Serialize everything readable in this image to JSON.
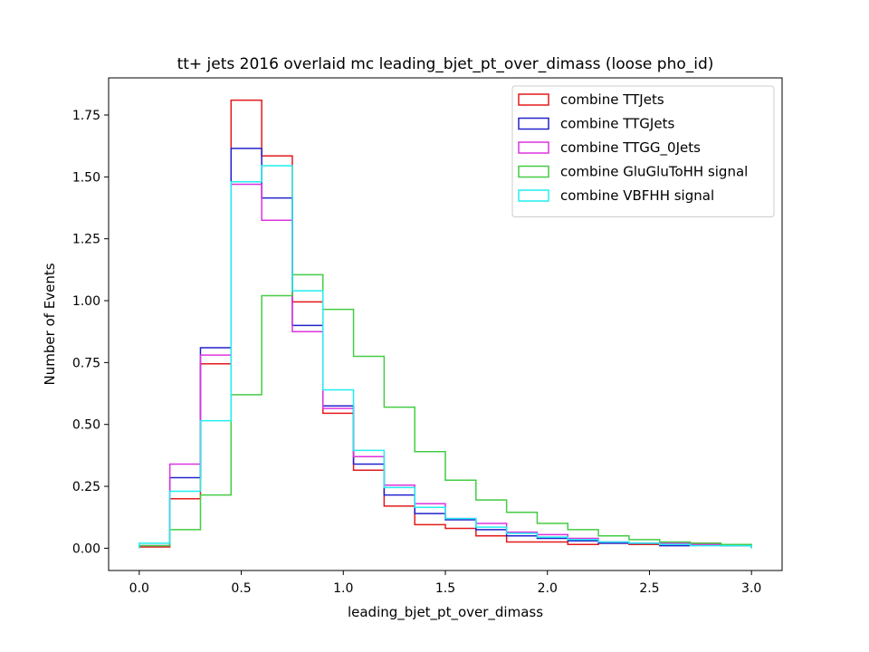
{
  "chart_data": {
    "type": "histogram-step",
    "title": "tt+ jets 2016 overlaid mc leading_bjet_pt_over_dimass (loose pho_id)",
    "xlabel": "leading_bjet_pt_over_dimass",
    "ylabel": "Number of Events",
    "xlim": [
      -0.15,
      3.15
    ],
    "ylim": [
      -0.09,
      1.9
    ],
    "bin_edges": [
      0.0,
      0.15,
      0.3,
      0.45,
      0.6,
      0.75,
      0.9,
      1.05,
      1.2,
      1.35,
      1.5,
      1.65,
      1.8,
      1.95,
      2.1,
      2.25,
      2.4,
      2.55,
      2.7,
      2.85,
      3.0
    ],
    "x_ticks": [
      {
        "value": 0.0,
        "label": "0.0"
      },
      {
        "value": 0.5,
        "label": "0.5"
      },
      {
        "value": 1.0,
        "label": "1.0"
      },
      {
        "value": 1.5,
        "label": "1.5"
      },
      {
        "value": 2.0,
        "label": "2.0"
      },
      {
        "value": 2.5,
        "label": "2.5"
      },
      {
        "value": 3.0,
        "label": "3.0"
      }
    ],
    "y_ticks": [
      {
        "value": 0.0,
        "label": "0.00"
      },
      {
        "value": 0.25,
        "label": "0.25"
      },
      {
        "value": 0.5,
        "label": "0.50"
      },
      {
        "value": 0.75,
        "label": "0.75"
      },
      {
        "value": 1.0,
        "label": "1.00"
      },
      {
        "value": 1.25,
        "label": "1.25"
      },
      {
        "value": 1.5,
        "label": "1.50"
      },
      {
        "value": 1.75,
        "label": "1.75"
      }
    ],
    "grid": false,
    "legend_position": "top-right",
    "series": [
      {
        "name": "combine TTJets",
        "color": "#e41a1c",
        "values": [
          0.005,
          0.2,
          0.745,
          1.81,
          1.585,
          0.995,
          0.545,
          0.315,
          0.17,
          0.095,
          0.08,
          0.05,
          0.025,
          0.025,
          0.015,
          0.02,
          0.015,
          0.015,
          0.02,
          0.01
        ]
      },
      {
        "name": "combine TTGJets",
        "color": "#2222cc",
        "values": [
          0.01,
          0.285,
          0.81,
          1.615,
          1.415,
          0.9,
          0.575,
          0.34,
          0.215,
          0.14,
          0.115,
          0.075,
          0.05,
          0.04,
          0.03,
          0.02,
          0.02,
          0.01,
          0.015,
          0.01
        ]
      },
      {
        "name": "combine TTGG_0Jets",
        "color": "#dd33dd",
        "values": [
          0.01,
          0.34,
          0.78,
          1.47,
          1.325,
          0.875,
          0.565,
          0.37,
          0.255,
          0.18,
          0.12,
          0.1,
          0.065,
          0.055,
          0.04,
          0.025,
          0.02,
          0.02,
          0.015,
          0.01
        ]
      },
      {
        "name": "combine GluGluToHH signal",
        "color": "#44cc44",
        "values": [
          0.01,
          0.075,
          0.215,
          0.62,
          1.02,
          1.105,
          0.965,
          0.775,
          0.57,
          0.39,
          0.275,
          0.195,
          0.145,
          0.1,
          0.075,
          0.05,
          0.035,
          0.025,
          0.02,
          0.015
        ]
      },
      {
        "name": "combine VBFHH signal",
        "color": "#22eeee",
        "values": [
          0.02,
          0.23,
          0.515,
          1.48,
          1.545,
          1.04,
          0.64,
          0.395,
          0.245,
          0.165,
          0.12,
          0.085,
          0.06,
          0.045,
          0.035,
          0.025,
          0.02,
          0.015,
          0.01,
          0.01
        ]
      }
    ]
  }
}
